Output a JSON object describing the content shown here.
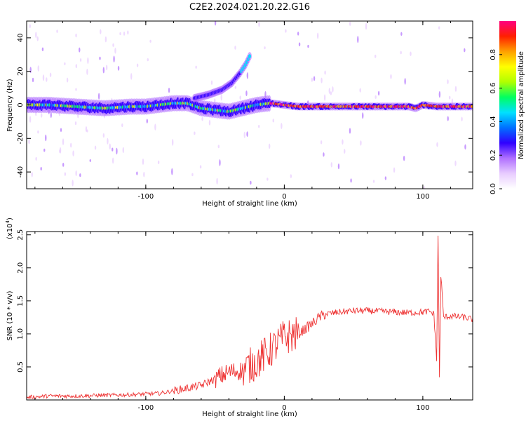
{
  "title": "C2E2.2024.021.20.22.G16",
  "chart_data": [
    {
      "type": "heatmap",
      "xlabel": "Height of straight line (km)",
      "ylabel": "Frequency (Hz)",
      "xlim": [
        -186,
        136
      ],
      "ylim": [
        -50,
        50
      ],
      "xticks": [
        -100,
        0,
        100
      ],
      "yticks": [
        -40,
        -20,
        0,
        20,
        40
      ],
      "colorbar": {
        "label": "Normalized spectral amplitude",
        "range": [
          0,
          1
        ],
        "ticks": [
          0.0,
          0.2,
          0.4,
          0.6,
          0.8
        ],
        "colors": [
          "#ffffff",
          "#e8ccff",
          "#b070ff",
          "#3000ff",
          "#0070ff",
          "#00e0ff",
          "#00ff60",
          "#b0ff00",
          "#ffff00",
          "#ffa000",
          "#ff2000",
          "#ff0080"
        ]
      },
      "main_trace": {
        "x": [
          -186,
          -170,
          -150,
          -130,
          -110,
          -100,
          -90,
          -80,
          -70,
          -60,
          -50,
          -40,
          -30,
          -20,
          -10,
          0,
          10,
          20,
          40,
          60,
          80,
          90,
          95,
          100,
          110,
          120,
          136
        ],
        "y": [
          0,
          0,
          -1,
          -2,
          -1,
          -1,
          0,
          1,
          1,
          -2,
          -3,
          -4,
          -2,
          0,
          1,
          0,
          -1,
          -1,
          -1,
          -1,
          -1,
          -1,
          -2,
          0,
          -1,
          -1,
          -1
        ]
      },
      "branch_trace": {
        "x": [
          -65,
          -55,
          -45,
          -38,
          -32,
          -28,
          -25
        ],
        "y": [
          4,
          6,
          9,
          13,
          19,
          24,
          29
        ]
      }
    },
    {
      "type": "line",
      "xlabel": "Height of straight line (km)",
      "ylabel": "SNR (10 * v/v)",
      "y_multiplier": "(x10",
      "y_multiplier_exp": "4",
      "y_multiplier_close": ")",
      "xlim": [
        -186,
        136
      ],
      "ylim": [
        0,
        2.55
      ],
      "xticks": [
        -100,
        0,
        100
      ],
      "yticks": [
        0.5,
        1.0,
        1.5,
        2.0,
        2.5
      ],
      "series": [
        {
          "color": "#ee3333",
          "x": [
            -186,
            -170,
            -150,
            -130,
            -110,
            -100,
            -90,
            -80,
            -70,
            -60,
            -50,
            -40,
            -30,
            -20,
            -10,
            0,
            10,
            20,
            25,
            30,
            40,
            50,
            60,
            70,
            80,
            90,
            100,
            105,
            108,
            110,
            111,
            112,
            113,
            115,
            120,
            130,
            136
          ],
          "values": [
            0.04,
            0.06,
            0.06,
            0.07,
            0.08,
            0.09,
            0.1,
            0.14,
            0.18,
            0.22,
            0.32,
            0.42,
            0.45,
            0.58,
            0.75,
            0.95,
            1.0,
            1.15,
            1.25,
            1.3,
            1.33,
            1.35,
            1.35,
            1.34,
            1.33,
            1.32,
            1.33,
            1.34,
            1.3,
            0.6,
            2.5,
            0.35,
            1.9,
            1.25,
            1.27,
            1.25,
            1.22
          ]
        }
      ]
    }
  ]
}
